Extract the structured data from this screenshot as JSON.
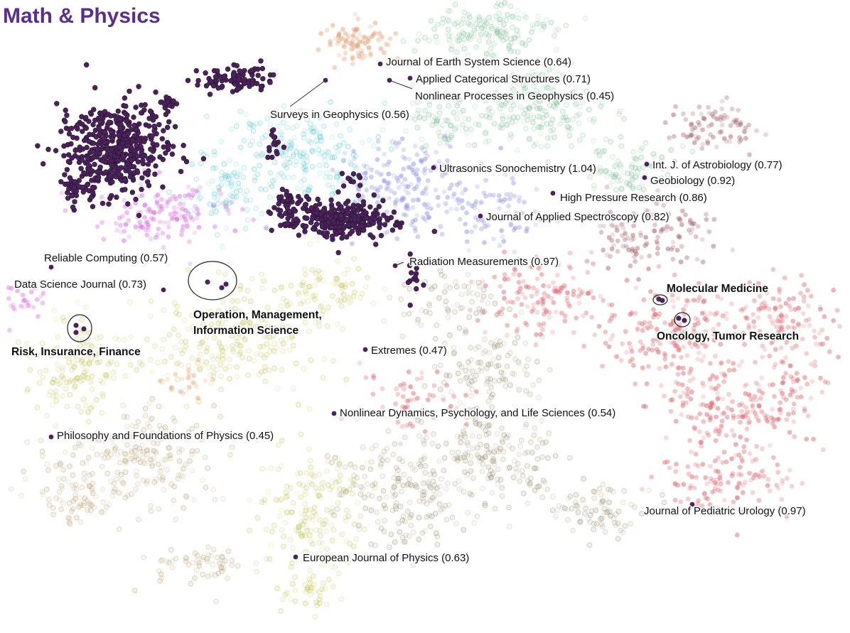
{
  "chart_data": {
    "type": "scatter",
    "title": "Math & Physics",
    "xlabel": "",
    "ylabel": "",
    "grid": false,
    "legend": "none",
    "colors": {
      "highlight": "#4a235a",
      "title": "#5b2d8e",
      "orange": "#e2a073",
      "green": "#7fbf95",
      "cyan": "#5cc7cf",
      "blue": "#8f8fe6",
      "magenta": "#d46ad8",
      "yellow": "#c6c55a",
      "tan": "#b9a176",
      "olive": "#9d9170",
      "red": "#d9646b",
      "brown": "#a4606a"
    },
    "annotations": [
      {
        "text": "Journal of Earth System Science (0.64)",
        "style": "normal"
      },
      {
        "text": "Applied Categorical Structures (0.71)",
        "style": "normal"
      },
      {
        "text": "Nonlinear Processes in Geophysics (0.45)",
        "style": "normal"
      },
      {
        "text": "Surveys in Geophysics (0.56)",
        "style": "normal"
      },
      {
        "text": "Ultrasonics Sonochemistry (1.04)",
        "style": "normal"
      },
      {
        "text": "Int. J. of Astrobiology (0.77)",
        "style": "normal"
      },
      {
        "text": "Geobiology (0.92)",
        "style": "normal"
      },
      {
        "text": "High Pressure Research (0.86)",
        "style": "normal"
      },
      {
        "text": "Journal of Applied Spectroscopy (0.82)",
        "style": "normal"
      },
      {
        "text": "Reliable Computing (0.57)",
        "style": "normal"
      },
      {
        "text": "Data Science Journal (0.73)",
        "style": "normal"
      },
      {
        "text": "Radiation Measurements (0.97)",
        "style": "normal"
      },
      {
        "text": "Operation, Management,",
        "style": "bold"
      },
      {
        "text": "Information Science",
        "style": "bold"
      },
      {
        "text": "Risk, Insurance, Finance",
        "style": "bold"
      },
      {
        "text": "Molecular Medicine",
        "style": "bold"
      },
      {
        "text": "Oncology, Tumor Research",
        "style": "bold"
      },
      {
        "text": "Extremes (0.47)",
        "style": "normal"
      },
      {
        "text": "Nonlinear Dynamics, Psychology, and Life Sciences (0.54)",
        "style": "normal"
      },
      {
        "text": "Philosophy and Foundations of Physics (0.45)",
        "style": "normal"
      },
      {
        "text": "Journal of Pediatric Urology (0.97)",
        "style": "normal"
      },
      {
        "text": "European Journal of Physics (0.63)",
        "style": "normal"
      }
    ]
  }
}
